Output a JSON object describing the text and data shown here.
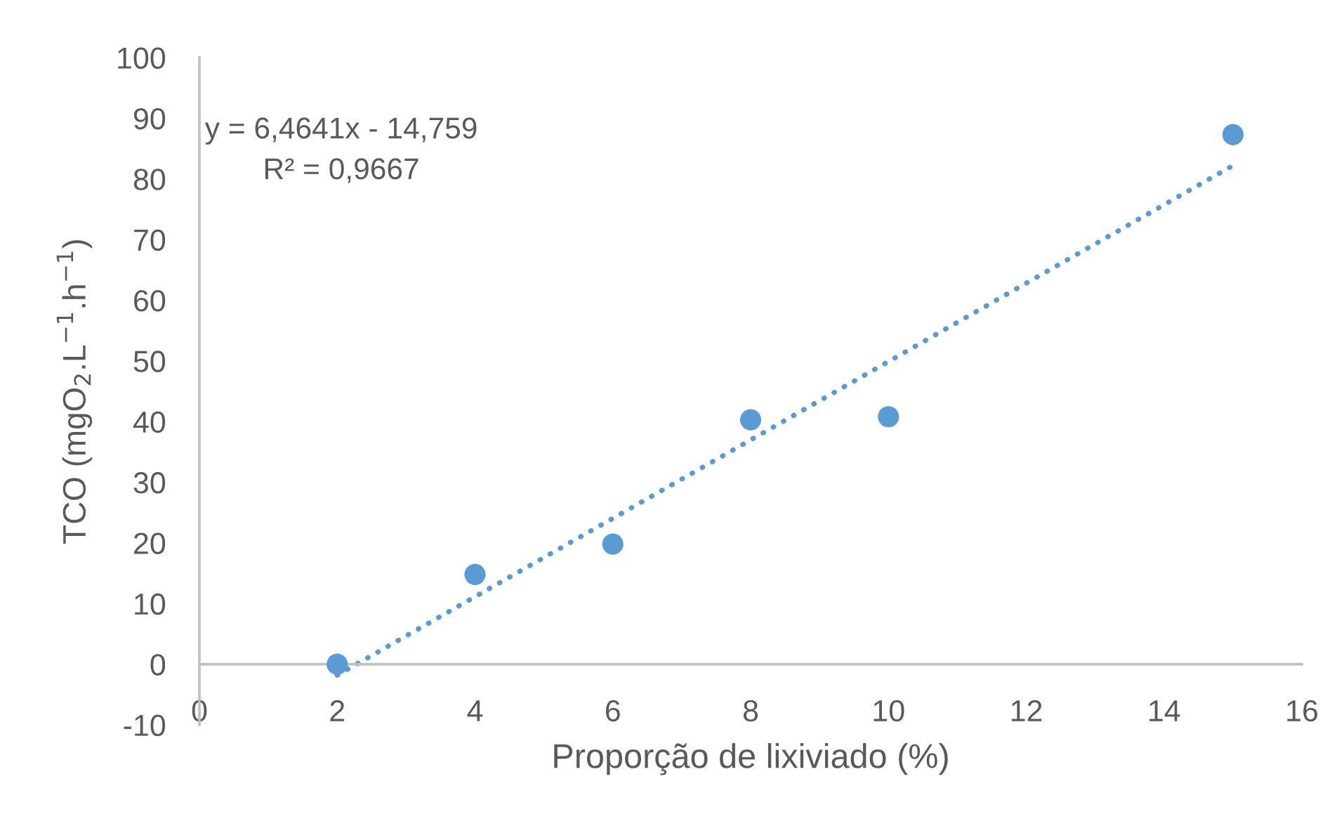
{
  "chart_data": {
    "type": "scatter",
    "xlabel": "Proporção de lixiviado (%)",
    "ylabel": "TCO (mgO$_{2}$.L$^{−1}$.h$^{−1}$)",
    "annotations": [
      "y = 6,4641x - 14,759",
      "R² = 0,9667"
    ],
    "xlim": [
      0,
      16
    ],
    "ylim": [
      -10,
      100
    ],
    "xticks": [
      0,
      2,
      4,
      6,
      8,
      10,
      12,
      14,
      16
    ],
    "yticks": [
      -10,
      0,
      10,
      20,
      30,
      40,
      50,
      60,
      70,
      80,
      90,
      100
    ],
    "series": [
      {
        "color": "#5b9bd5",
        "marker": "circle",
        "x": [
          2,
          4,
          6,
          8,
          10,
          15
        ],
        "values": [
          0,
          14.8,
          19.8,
          40.3,
          40.8,
          87.3
        ]
      },
      {
        "type": "line",
        "color": "#5b9bd5",
        "marker": "none",
        "line_style": "dotted",
        "x": [
          2,
          15
        ],
        "values": [
          -1.8,
          82.2
        ]
      }
    ]
  }
}
